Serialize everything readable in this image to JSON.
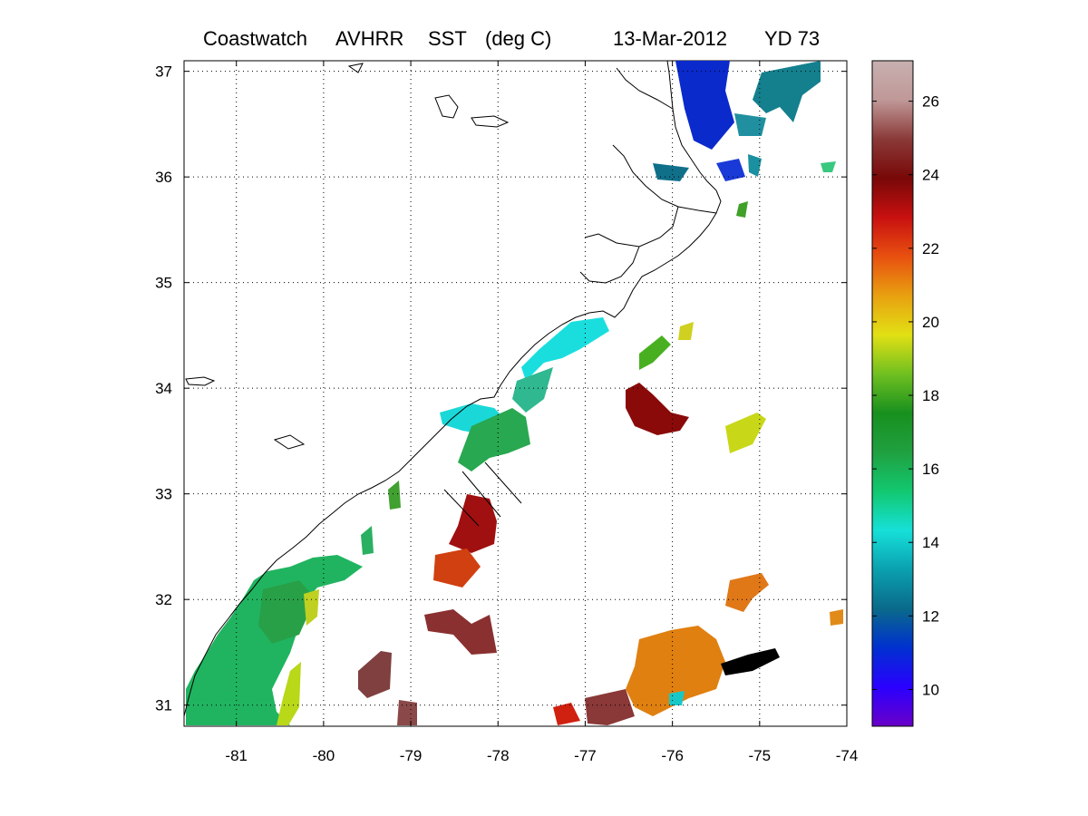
{
  "title": {
    "source": "Coastwatch",
    "sensor": "AVHRR",
    "product": "SST",
    "units": "(deg C)",
    "date": "13-Mar-2012",
    "yearday": "YD 73"
  },
  "map": {
    "lon_ticks": [
      "-81",
      "-80",
      "-79",
      "-78",
      "-77",
      "-76",
      "-75",
      "-74"
    ],
    "lat_ticks": [
      "31",
      "32",
      "33",
      "34",
      "35",
      "36",
      "37"
    ],
    "lon_range": [
      -81.6,
      -74
    ],
    "lat_range": [
      30.8,
      37.1
    ],
    "grid": "dotted"
  },
  "colorbar": {
    "ticks": [
      "10",
      "12",
      "14",
      "16",
      "18",
      "20",
      "22",
      "24",
      "26"
    ],
    "range": [
      9,
      27.1
    ],
    "colors": [
      "#6a00c8",
      "#2a00ff",
      "#0030d0",
      "#0a6a8a",
      "#0aa0b0",
      "#16e0d8",
      "#12c870",
      "#20a040",
      "#18901e",
      "#70c020",
      "#e2e014",
      "#e8a010",
      "#e85010",
      "#c81010",
      "#780808",
      "#8a3a38",
      "#c09898",
      "#c8b0b0"
    ]
  }
}
